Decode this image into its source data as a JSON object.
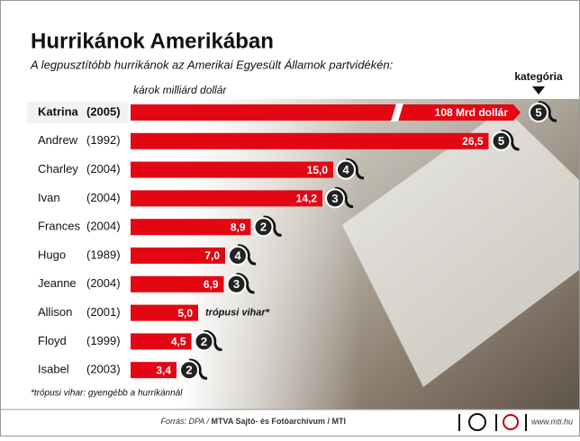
{
  "chart_data": {
    "type": "bar",
    "title": "Hurrikánok Amerikában",
    "subtitle": "A legpusztítóbb hurrikánok az Amerikai Egyesült Államok partvidékén:",
    "value_axis_label": "károk milliárd dollár",
    "rating_label": "kategória",
    "categories": [
      "Katrina",
      "Andrew",
      "Charley",
      "Ivan",
      "Frances",
      "Hugo",
      "Jeanne",
      "Allison",
      "Floyd",
      "Isabel"
    ],
    "years": [
      "(2005)",
      "(1992)",
      "(2004)",
      "(2004)",
      "(2004)",
      "(1989)",
      "(2004)",
      "(2001)",
      "(1999)",
      "(2003)"
    ],
    "values": [
      108,
      26.5,
      15.0,
      14.2,
      8.9,
      7.0,
      6.9,
      5.0,
      4.5,
      3.4
    ],
    "value_labels": [
      "108 Mrd dollár",
      "26,5",
      "15,0",
      "14,2",
      "8,9",
      "7,0",
      "6,9",
      "5,0",
      "4,5",
      "3,4"
    ],
    "ratings": [
      5,
      5,
      4,
      3,
      2,
      4,
      3,
      null,
      2,
      2
    ],
    "tropical_storm_note": "trópusi vihar*",
    "color": "#e30613",
    "footnote": "*trópusi vihar: gyengébb a hurrikánnál",
    "source_prefix": "Forrás: DPA /",
    "source_bold": "MTVA Sajtó- és Fotóarchívum / MTI",
    "website": "www.mti.hu"
  }
}
